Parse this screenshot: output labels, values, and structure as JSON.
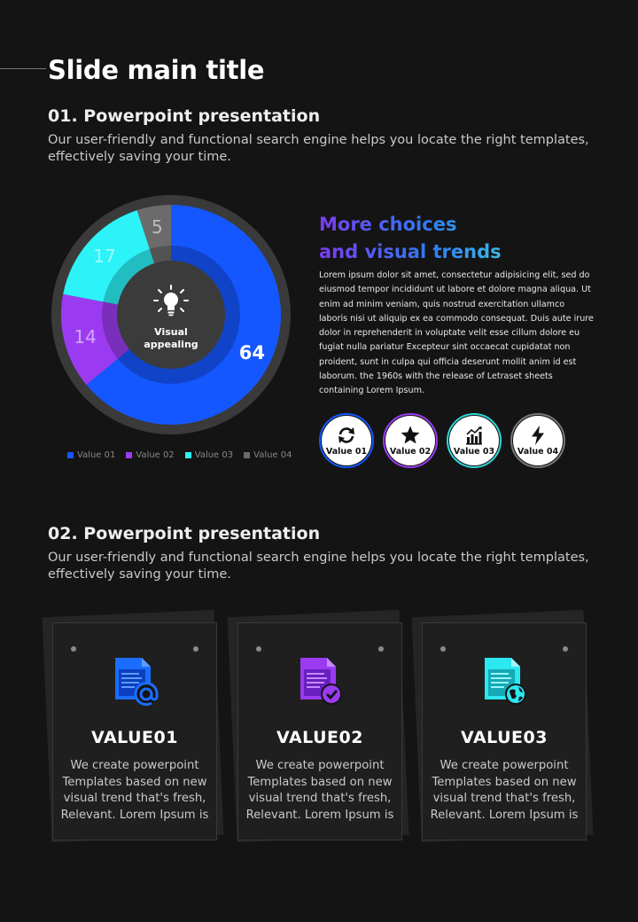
{
  "slide": {
    "title": "Slide main title"
  },
  "section1": {
    "heading": "01. Powerpoint presentation",
    "description": "Our user-friendly and functional search engine helps you locate the right templates, effectively saving your time."
  },
  "section2": {
    "heading": "02. Powerpoint presentation",
    "description": "Our user-friendly and functional search engine helps you locate the right templates, effectively saving your time."
  },
  "chart_data": {
    "type": "pie",
    "categories": [
      "Value 01",
      "Value 02",
      "Value 03",
      "Value 04"
    ],
    "values": [
      64,
      14,
      17,
      5
    ],
    "colors": [
      "#1557ff",
      "#9b3bf1",
      "#2cf3f8",
      "#6b6b6b"
    ],
    "center_label": [
      "Visual",
      "appealing"
    ],
    "center_icon": "lightbulb-icon",
    "legend": "bottom"
  },
  "side": {
    "title_line1": "More choices",
    "title_line2": "and visual trends",
    "body": "Lorem ipsum dolor sit amet, consectetur adipisicing elit, sed do eiusmod tempor incididunt ut labore et dolore magna aliqua. Ut enim ad minim veniam, quis nostrud exercitation ullamco laboris nisi ut aliquip ex ea commodo consequat. Duis aute irure dolor in reprehenderit in voluptate velit esse cillum dolore eu fugiat nulla pariatur Excepteur sint occaecat cupidatat non proident, sunt in culpa qui officia deserunt mollit anim id est laborum. the 1960s with the release of Letraset sheets containing Lorem Ipsum."
  },
  "badges": [
    {
      "label": "Value 01",
      "icon": "refresh-icon",
      "ring": "#1557ff"
    },
    {
      "label": "Value 02",
      "icon": "star-icon",
      "ring": "#9b3bf1"
    },
    {
      "label": "Value 03",
      "icon": "bar-chart-icon",
      "ring": "#2cd6d8"
    },
    {
      "label": "Value 04",
      "icon": "lightning-icon",
      "ring": "#777777"
    }
  ],
  "cards": [
    {
      "title": "VALUE01",
      "text": "We create powerpoint Templates based on new visual trend that's fresh, Relevant. Lorem Ipsum is",
      "icon": "document-email-icon",
      "color": "#1a6dff"
    },
    {
      "title": "VALUE02",
      "text": "We create powerpoint Templates based on new visual trend that's fresh, Relevant. Lorem Ipsum is",
      "icon": "document-check-icon",
      "color": "#9b3bf1"
    },
    {
      "title": "VALUE03",
      "text": "We create powerpoint Templates based on new visual trend that's fresh, Relevant. Lorem Ipsum is",
      "icon": "document-globe-icon",
      "color": "#2ce8f0"
    }
  ]
}
